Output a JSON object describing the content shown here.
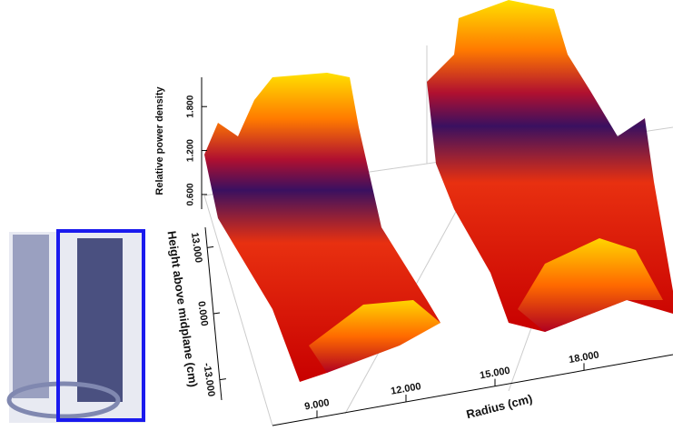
{
  "chart_data": {
    "type": "surface",
    "xlabel": "Radius (cm)",
    "ylabel": "Height above midplane (cm)",
    "zlabel": "Relative power density",
    "xlim": [
      7.5,
      21
    ],
    "xticks": [
      {
        "value": 9,
        "label": "9.000"
      },
      {
        "value": 12,
        "label": "12.000"
      },
      {
        "value": 15,
        "label": "15.000"
      },
      {
        "value": 18,
        "label": "18.000"
      }
    ],
    "ylim": [
      -17,
      17
    ],
    "yticks": [
      {
        "value": -13,
        "label": "-13.000"
      },
      {
        "value": 0,
        "label": "0.000"
      },
      {
        "value": 13,
        "label": "13.000"
      }
    ],
    "zlim": [
      0.4,
      2.2
    ],
    "zticks": [
      {
        "value": 0.6,
        "label": "0.600"
      },
      {
        "value": 1.2,
        "label": "1.200"
      },
      {
        "value": 1.8,
        "label": "1.800"
      }
    ]
  }
}
